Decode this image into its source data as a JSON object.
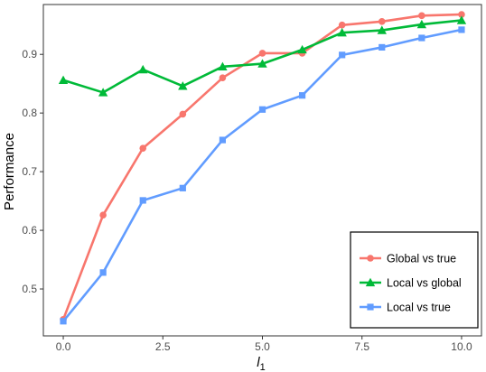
{
  "chart_data": {
    "type": "line",
    "title": "",
    "xlabel": "l",
    "xlabel_sub": "1",
    "ylabel": "Performance",
    "xlim": [
      -0.5,
      10.5
    ],
    "ylim": [
      0.42,
      0.985
    ],
    "x_ticks": [
      0,
      2.5,
      5,
      7.5,
      10
    ],
    "x_tick_labels": [
      "0.0",
      "2.5",
      "5.0",
      "7.5",
      "10.0"
    ],
    "y_ticks": [
      0.5,
      0.6,
      0.7,
      0.8,
      0.9
    ],
    "y_tick_labels": [
      "0.5",
      "0.6",
      "0.7",
      "0.8",
      "0.9"
    ],
    "grid": false,
    "legend_position": "bottom-right",
    "x": [
      0,
      1,
      2,
      3,
      4,
      5,
      6,
      7,
      8,
      9,
      10
    ],
    "series": [
      {
        "name": "Global vs true",
        "color": "#F8766D",
        "marker": "circle",
        "values": [
          0.448,
          0.626,
          0.74,
          0.798,
          0.86,
          0.902,
          0.902,
          0.95,
          0.956,
          0.966,
          0.968
        ]
      },
      {
        "name": "Local vs global",
        "color": "#00BA38",
        "marker": "triangle",
        "values": [
          0.856,
          0.835,
          0.874,
          0.846,
          0.879,
          0.884,
          0.908,
          0.937,
          0.941,
          0.951,
          0.958
        ]
      },
      {
        "name": "Local vs true",
        "color": "#619CFF",
        "marker": "square",
        "values": [
          0.445,
          0.528,
          0.651,
          0.672,
          0.754,
          0.806,
          0.83,
          0.899,
          0.912,
          0.928,
          0.942
        ]
      }
    ]
  }
}
